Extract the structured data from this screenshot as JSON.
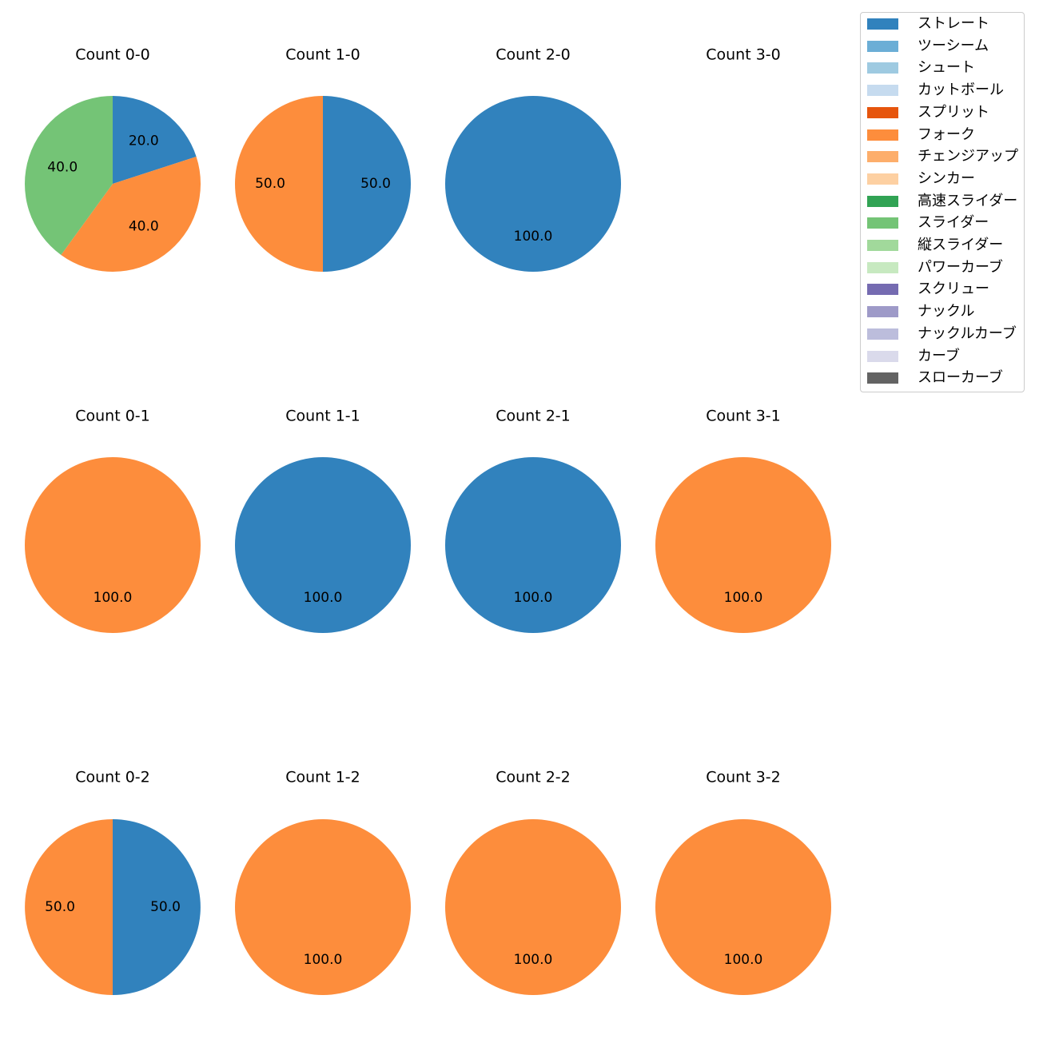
{
  "chart_data": {
    "type": "pie",
    "figure_title": "",
    "legend": {
      "placement": "top-right",
      "entries": [
        {
          "label": "ストレート",
          "color": "#3182bd"
        },
        {
          "label": "ツーシーム",
          "color": "#6baed6"
        },
        {
          "label": "シュート",
          "color": "#9ecae1"
        },
        {
          "label": "カットボール",
          "color": "#c6dbef"
        },
        {
          "label": "スプリット",
          "color": "#e6550d"
        },
        {
          "label": "フォーク",
          "color": "#fd8d3c"
        },
        {
          "label": "チェンジアップ",
          "color": "#fdae6b"
        },
        {
          "label": "シンカー",
          "color": "#fdd0a2"
        },
        {
          "label": "高速スライダー",
          "color": "#31a354"
        },
        {
          "label": "スライダー",
          "color": "#74c476"
        },
        {
          "label": "縦スライダー",
          "color": "#a1d99b"
        },
        {
          "label": "パワーカーブ",
          "color": "#c7e9c0"
        },
        {
          "label": "スクリュー",
          "color": "#756bb1"
        },
        {
          "label": "ナックル",
          "color": "#9e9ac8"
        },
        {
          "label": "ナックルカーブ",
          "color": "#bcbddc"
        },
        {
          "label": "カーブ",
          "color": "#dadaeb"
        },
        {
          "label": "スローカーブ",
          "color": "#636363"
        }
      ]
    },
    "panels": [
      {
        "title": "Count 0-0",
        "slices": [
          {
            "pitch": "ストレート",
            "value": 20.0,
            "label": "20.0"
          },
          {
            "pitch": "フォーク",
            "value": 40.0,
            "label": "40.0"
          },
          {
            "pitch": "スライダー",
            "value": 40.0,
            "label": "40.0"
          }
        ]
      },
      {
        "title": "Count 1-0",
        "slices": [
          {
            "pitch": "ストレート",
            "value": 50.0,
            "label": "50.0"
          },
          {
            "pitch": "フォーク",
            "value": 50.0,
            "label": "50.0"
          }
        ]
      },
      {
        "title": "Count 2-0",
        "slices": [
          {
            "pitch": "ストレート",
            "value": 100.0,
            "label": "100.0"
          }
        ]
      },
      {
        "title": "Count 3-0",
        "slices": []
      },
      {
        "title": "Count 0-1",
        "slices": [
          {
            "pitch": "フォーク",
            "value": 100.0,
            "label": "100.0"
          }
        ]
      },
      {
        "title": "Count 1-1",
        "slices": [
          {
            "pitch": "ストレート",
            "value": 100.0,
            "label": "100.0"
          }
        ]
      },
      {
        "title": "Count 2-1",
        "slices": [
          {
            "pitch": "ストレート",
            "value": 100.0,
            "label": "100.0"
          }
        ]
      },
      {
        "title": "Count 3-1",
        "slices": [
          {
            "pitch": "フォーク",
            "value": 100.0,
            "label": "100.0"
          }
        ]
      },
      {
        "title": "Count 0-2",
        "slices": [
          {
            "pitch": "ストレート",
            "value": 50.0,
            "label": "50.0"
          },
          {
            "pitch": "フォーク",
            "value": 50.0,
            "label": "50.0"
          }
        ]
      },
      {
        "title": "Count 1-2",
        "slices": [
          {
            "pitch": "フォーク",
            "value": 100.0,
            "label": "100.0"
          }
        ]
      },
      {
        "title": "Count 2-2",
        "slices": [
          {
            "pitch": "フォーク",
            "value": 100.0,
            "label": "100.0"
          }
        ]
      },
      {
        "title": "Count 3-2",
        "slices": [
          {
            "pitch": "フォーク",
            "value": 100.0,
            "label": "100.0"
          }
        ]
      }
    ]
  }
}
